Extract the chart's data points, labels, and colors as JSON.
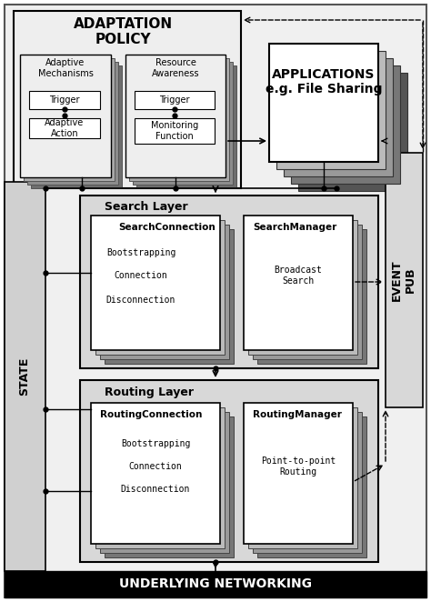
{
  "fig_width": 4.74,
  "fig_height": 6.62,
  "bg_color": "#f5f5f5",
  "title_bottom": "UNDERLYING NETWORKING",
  "state_label": "STATE",
  "event_pub_label": "EVENT\nPUB",
  "adaptation_policy_label": "ADAPTATION\nPOLICY",
  "applications_label": "APPLICATIONS\ne.g. File Sharing",
  "search_layer_label": "Search Layer",
  "routing_layer_label": "Routing Layer",
  "search_connection_label": "SearchConnection",
  "search_manager_label": "SearchManager",
  "routing_connection_label": "RoutingConnection",
  "routing_manager_label": "RoutingManager",
  "adaptive_mechanisms_label": "Adaptive\nMechanisms",
  "resource_awareness_label": "Resource\nAwareness",
  "trigger_label": "Trigger",
  "adaptive_action_label": "Adaptive\nAction",
  "monitoring_function_label": "Monitoring\nFunction",
  "bootstrapping_label": "Bootstrapping",
  "connection_label": "Connection",
  "disconnection_label": "Disconnection",
  "broadcast_search_label": "Broadcast\nSearch",
  "point_to_point_label": "Point-to-point\nRouting"
}
